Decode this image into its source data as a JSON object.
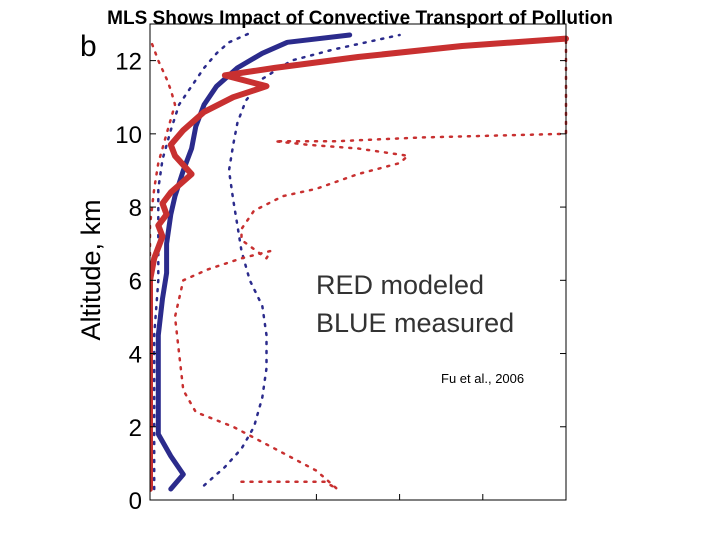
{
  "slide_title": "MLS Shows Impact of Convective Transport of Pollution",
  "chart_data": {
    "type": "line",
    "panel_label": "b",
    "title": "",
    "xlabel": "",
    "ylabel": "Altitude, km",
    "ylim": [
      0,
      13
    ],
    "xlim": [
      0,
      100
    ],
    "yticks": [
      0,
      2,
      4,
      6,
      8,
      10,
      12
    ],
    "xticks_unlabeled": [
      20,
      40,
      60,
      80,
      100
    ],
    "grid": false,
    "legend_lines": [
      "RED modeled",
      "BLUE measured"
    ],
    "citation": "Fu et al., 2006",
    "series": [
      {
        "name": "BLUE measured",
        "color": "#2b2b8c",
        "style": "solid",
        "points": [
          [
            5,
            0.3
          ],
          [
            8,
            0.7
          ],
          [
            5,
            1.2
          ],
          [
            2,
            1.8
          ],
          [
            2,
            2.5
          ],
          [
            2,
            3.5
          ],
          [
            2,
            4.5
          ],
          [
            3,
            5.5
          ],
          [
            4,
            6.2
          ],
          [
            4,
            7.0
          ],
          [
            5,
            7.8
          ],
          [
            6,
            8.3
          ],
          [
            8,
            9.0
          ],
          [
            10,
            9.6
          ],
          [
            11,
            10.2
          ],
          [
            13,
            10.8
          ],
          [
            16,
            11.3
          ],
          [
            21,
            11.8
          ],
          [
            27,
            12.2
          ],
          [
            33,
            12.5
          ],
          [
            48,
            12.7
          ]
        ]
      },
      {
        "name": "RED modeled",
        "color": "#c83030",
        "style": "solid",
        "points": [
          [
            0,
            0.3
          ],
          [
            0,
            2
          ],
          [
            0,
            4
          ],
          [
            0,
            6
          ],
          [
            1,
            6.6
          ],
          [
            3,
            7.2
          ],
          [
            2,
            7.5
          ],
          [
            4,
            7.8
          ],
          [
            3,
            8.1
          ],
          [
            5,
            8.4
          ],
          [
            10,
            8.9
          ],
          [
            6,
            9.4
          ],
          [
            5,
            9.7
          ],
          [
            8,
            10.1
          ],
          [
            13,
            10.6
          ],
          [
            20,
            11.0
          ],
          [
            28,
            11.3
          ],
          [
            18,
            11.6
          ],
          [
            30,
            11.8
          ],
          [
            50,
            12.1
          ],
          [
            75,
            12.4
          ],
          [
            100,
            12.6
          ]
        ]
      },
      {
        "name": "BLUE measured upper bound",
        "color": "#2b2b8c",
        "style": "dotted",
        "points": [
          [
            13,
            0.4
          ],
          [
            18,
            0.9
          ],
          [
            22,
            1.4
          ],
          [
            25,
            2.0
          ],
          [
            27,
            2.8
          ],
          [
            28,
            3.6
          ],
          [
            28,
            4.5
          ],
          [
            27,
            5.3
          ],
          [
            24,
            6.0
          ],
          [
            22,
            6.8
          ],
          [
            21,
            7.5
          ],
          [
            20,
            8.2
          ],
          [
            19,
            9.0
          ],
          [
            20,
            9.7
          ],
          [
            21,
            10.3
          ],
          [
            23,
            10.9
          ],
          [
            27,
            11.5
          ],
          [
            34,
            12.0
          ],
          [
            44,
            12.3
          ],
          [
            56,
            12.6
          ],
          [
            60,
            12.7
          ]
        ]
      },
      {
        "name": "BLUE measured lower bound",
        "color": "#2b2b8c",
        "style": "dotted",
        "points": [
          [
            1,
            0.3
          ],
          [
            1,
            1.5
          ],
          [
            1,
            3
          ],
          [
            1,
            4.5
          ],
          [
            2,
            6
          ],
          [
            2,
            7.5
          ],
          [
            2,
            8.5
          ],
          [
            3,
            9.3
          ],
          [
            5,
            10.1
          ],
          [
            7,
            10.8
          ],
          [
            10,
            11.3
          ],
          [
            13,
            11.8
          ],
          [
            16,
            12.2
          ],
          [
            19,
            12.5
          ],
          [
            25,
            12.8
          ]
        ]
      },
      {
        "name": "RED modeled upper bound",
        "color": "#c83030",
        "style": "dotted",
        "points": [
          [
            22,
            0.5
          ],
          [
            42,
            0.5
          ],
          [
            45,
            0.3
          ],
          [
            40,
            0.8
          ],
          [
            30,
            1.4
          ],
          [
            20,
            2.0
          ],
          [
            11,
            2.4
          ],
          [
            8,
            3.0
          ],
          [
            7,
            4.0
          ],
          [
            6,
            5.0
          ],
          [
            8,
            6.0
          ],
          [
            14,
            6.3
          ],
          [
            22,
            6.6
          ],
          [
            29,
            6.8
          ],
          [
            28,
            6.6
          ],
          [
            22,
            7.1
          ],
          [
            22,
            7.4
          ],
          [
            25,
            7.9
          ],
          [
            32,
            8.3
          ],
          [
            40,
            8.5
          ],
          [
            50,
            8.9
          ],
          [
            60,
            9.2
          ],
          [
            62,
            9.4
          ],
          [
            50,
            9.6
          ],
          [
            38,
            9.7
          ],
          [
            30,
            9.8
          ],
          [
            45,
            9.8
          ],
          [
            65,
            9.9
          ],
          [
            100,
            10.0
          ],
          [
            100,
            12.0
          ],
          [
            100,
            12.4
          ],
          [
            100,
            12.7
          ]
        ]
      },
      {
        "name": "RED modeled lower bound",
        "color": "#c83030",
        "style": "dotted",
        "points": [
          [
            0,
            0.3
          ],
          [
            0,
            2
          ],
          [
            0,
            4
          ],
          [
            0,
            6
          ],
          [
            0,
            7.5
          ],
          [
            1,
            8.5
          ],
          [
            2,
            9.2
          ],
          [
            4,
            10.0
          ],
          [
            6,
            10.8
          ],
          [
            5,
            11.2
          ],
          [
            4,
            11.5
          ],
          [
            2,
            12.0
          ],
          [
            1,
            12.3
          ],
          [
            0,
            12.6
          ]
        ]
      }
    ]
  }
}
